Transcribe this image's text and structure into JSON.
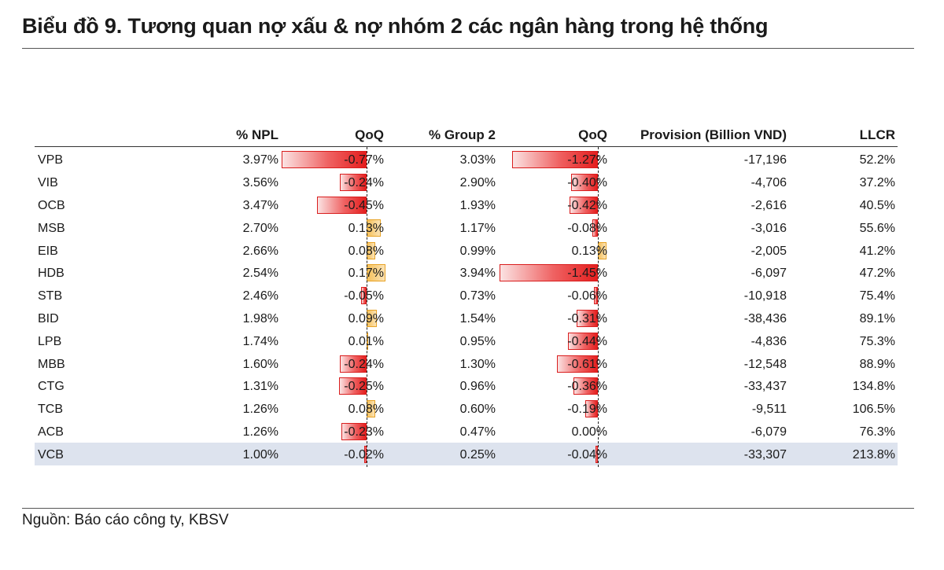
{
  "title": "Biểu đồ 9. Tương quan nợ xấu & nợ nhóm 2 các ngân hàng trong hệ thống",
  "source": "Nguồn: Báo cáo công ty, KBSV",
  "chart_data": {
    "type": "table",
    "title": "Biểu đồ 9. Tương quan nợ xấu & nợ nhóm 2 các ngân hàng trong hệ thống",
    "columns": [
      "",
      "% NPL",
      "QoQ",
      "% Group 2",
      "QoQ",
      "Provision (Billion VND)",
      "LLCR"
    ],
    "rows": [
      {
        "bank": "VPB",
        "npl": "3.97%",
        "npl_qoq": "-0.77%",
        "npl_qoq_val": -0.77,
        "g2": "3.03%",
        "g2_qoq": "-1.27%",
        "g2_qoq_val": -1.27,
        "provision": "-17,196",
        "llcr": "52.2%"
      },
      {
        "bank": "VIB",
        "npl": "3.56%",
        "npl_qoq": "-0.24%",
        "npl_qoq_val": -0.24,
        "g2": "2.90%",
        "g2_qoq": "-0.40%",
        "g2_qoq_val": -0.4,
        "provision": "-4,706",
        "llcr": "37.2%"
      },
      {
        "bank": "OCB",
        "npl": "3.47%",
        "npl_qoq": "-0.45%",
        "npl_qoq_val": -0.45,
        "g2": "1.93%",
        "g2_qoq": "-0.42%",
        "g2_qoq_val": -0.42,
        "provision": "-2,616",
        "llcr": "40.5%"
      },
      {
        "bank": "MSB",
        "npl": "2.70%",
        "npl_qoq": "0.13%",
        "npl_qoq_val": 0.13,
        "g2": "1.17%",
        "g2_qoq": "-0.08%",
        "g2_qoq_val": -0.08,
        "provision": "-3,016",
        "llcr": "55.6%"
      },
      {
        "bank": "EIB",
        "npl": "2.66%",
        "npl_qoq": "0.08%",
        "npl_qoq_val": 0.08,
        "g2": "0.99%",
        "g2_qoq": "0.13%",
        "g2_qoq_val": 0.13,
        "provision": "-2,005",
        "llcr": "41.2%"
      },
      {
        "bank": "HDB",
        "npl": "2.54%",
        "npl_qoq": "0.17%",
        "npl_qoq_val": 0.17,
        "g2": "3.94%",
        "g2_qoq": "-1.45%",
        "g2_qoq_val": -1.45,
        "provision": "-6,097",
        "llcr": "47.2%"
      },
      {
        "bank": "STB",
        "npl": "2.46%",
        "npl_qoq": "-0.05%",
        "npl_qoq_val": -0.05,
        "g2": "0.73%",
        "g2_qoq": "-0.06%",
        "g2_qoq_val": -0.06,
        "provision": "-10,918",
        "llcr": "75.4%"
      },
      {
        "bank": "BID",
        "npl": "1.98%",
        "npl_qoq": "0.09%",
        "npl_qoq_val": 0.09,
        "g2": "1.54%",
        "g2_qoq": "-0.31%",
        "g2_qoq_val": -0.31,
        "provision": "-38,436",
        "llcr": "89.1%"
      },
      {
        "bank": "LPB",
        "npl": "1.74%",
        "npl_qoq": "0.01%",
        "npl_qoq_val": 0.01,
        "g2": "0.95%",
        "g2_qoq": "-0.44%",
        "g2_qoq_val": -0.44,
        "provision": "-4,836",
        "llcr": "75.3%"
      },
      {
        "bank": "MBB",
        "npl": "1.60%",
        "npl_qoq": "-0.24%",
        "npl_qoq_val": -0.24,
        "g2": "1.30%",
        "g2_qoq": "-0.61%",
        "g2_qoq_val": -0.61,
        "provision": "-12,548",
        "llcr": "88.9%"
      },
      {
        "bank": "CTG",
        "npl": "1.31%",
        "npl_qoq": "-0.25%",
        "npl_qoq_val": -0.25,
        "g2": "0.96%",
        "g2_qoq": "-0.36%",
        "g2_qoq_val": -0.36,
        "provision": "-33,437",
        "llcr": "134.8%"
      },
      {
        "bank": "TCB",
        "npl": "1.26%",
        "npl_qoq": "0.08%",
        "npl_qoq_val": 0.08,
        "g2": "0.60%",
        "g2_qoq": "-0.19%",
        "g2_qoq_val": -0.19,
        "provision": "-9,511",
        "llcr": "106.5%"
      },
      {
        "bank": "ACB",
        "npl": "1.26%",
        "npl_qoq": "-0.23%",
        "npl_qoq_val": -0.23,
        "g2": "0.47%",
        "g2_qoq": "0.00%",
        "g2_qoq_val": 0.0,
        "provision": "-6,079",
        "llcr": "76.3%"
      },
      {
        "bank": "VCB",
        "npl": "1.00%",
        "npl_qoq": "-0.02%",
        "npl_qoq_val": -0.02,
        "g2": "0.25%",
        "g2_qoq": "-0.04%",
        "g2_qoq_val": -0.04,
        "provision": "-33,307",
        "llcr": "213.8%",
        "highlighted": true
      }
    ],
    "colors": {
      "negative": "#e41e1e",
      "positive": "#f6c15a",
      "highlight_row": "#dde3ee"
    }
  }
}
